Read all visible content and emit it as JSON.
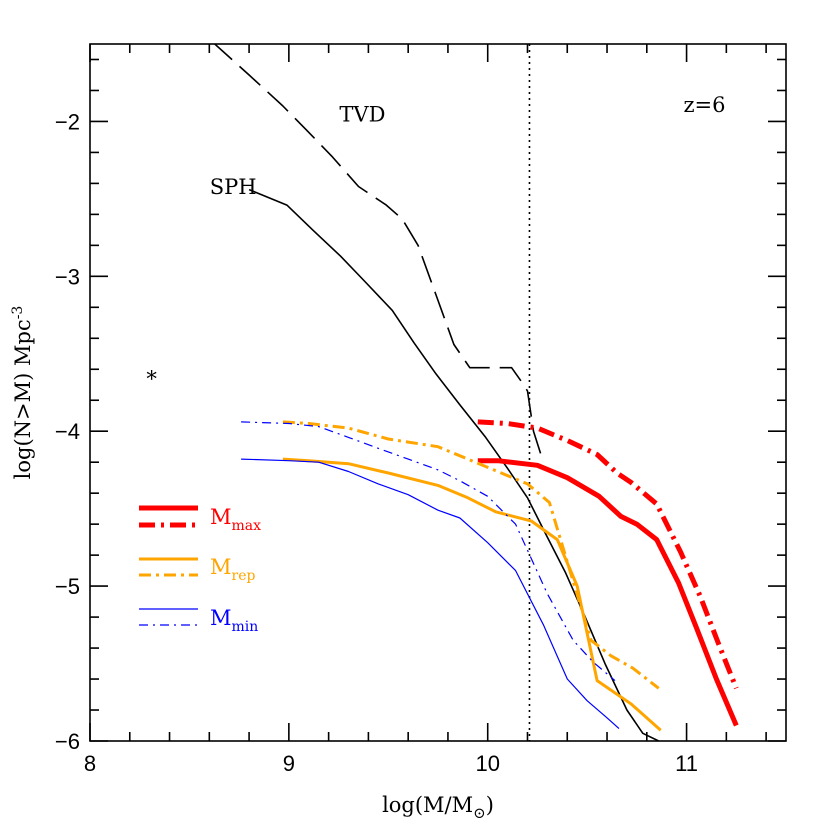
{
  "chart_data": {
    "type": "line",
    "xlabel": "log(M/M",
    "xlabel_sub": "⊙",
    "xlabel_end": ")",
    "ylabel": "log(N>M)  Mpc",
    "ylabel_sup": "-3",
    "xlim": [
      8,
      11.5
    ],
    "ylim": [
      -6,
      -1.5
    ],
    "x_ticks": [
      8,
      9,
      10,
      11
    ],
    "x_tick_labels": [
      "8",
      "9",
      "10",
      "11"
    ],
    "y_ticks": [
      -6,
      -5,
      -4,
      -3,
      -2
    ],
    "y_tick_labels": [
      "−6",
      "−5",
      "−4",
      "−3",
      "−2"
    ],
    "grid": false,
    "legend_position": "lower-left",
    "vline_x": 10.21,
    "colors": {
      "max": "#ff0000",
      "rep": "#ffa500",
      "min": "#0000ff",
      "black": "#000000"
    },
    "annotations": {
      "tvd": "TVD",
      "sph": "SPH",
      "redshift": "z=6",
      "marker": "*"
    },
    "marker_point": {
      "x": 8.31,
      "y": -3.63
    },
    "legend": [
      {
        "base": "M",
        "sub": "max",
        "color": "#ff0000"
      },
      {
        "base": "M",
        "sub": "rep",
        "color": "#ffa500"
      },
      {
        "base": "M",
        "sub": "min",
        "color": "#0000ff"
      }
    ],
    "series": [
      {
        "id": "tvd",
        "color": "#000000",
        "width": 1.6,
        "dash": "28,10",
        "x": [
          8.61,
          8.8,
          8.97,
          9.1,
          9.22,
          9.35,
          9.49,
          9.57,
          9.65,
          9.74,
          9.83,
          9.91,
          9.97,
          10.03,
          10.12,
          10.17,
          10.2,
          10.23,
          10.27
        ],
        "y": [
          -1.48,
          -1.7,
          -1.9,
          -2.07,
          -2.23,
          -2.42,
          -2.54,
          -2.63,
          -2.8,
          -3.12,
          -3.44,
          -3.59,
          -3.59,
          -3.59,
          -3.59,
          -3.68,
          -3.74,
          -4.0,
          -4.16
        ]
      },
      {
        "id": "sph",
        "color": "#000000",
        "width": 1.6,
        "dash": "",
        "x": [
          8.8,
          8.99,
          9.12,
          9.26,
          9.38,
          9.52,
          9.63,
          9.74,
          9.86,
          9.99,
          10.1,
          10.2,
          10.29,
          10.39,
          10.49,
          10.59,
          10.7,
          10.78,
          10.86
        ],
        "y": [
          -2.44,
          -2.54,
          -2.7,
          -2.87,
          -3.03,
          -3.22,
          -3.43,
          -3.63,
          -3.83,
          -4.04,
          -4.24,
          -4.43,
          -4.66,
          -4.91,
          -5.2,
          -5.5,
          -5.8,
          -5.95,
          -6.0
        ]
      },
      {
        "id": "max-solid",
        "color": "#ff0000",
        "width": 5,
        "dash": "",
        "x": [
          9.95,
          10.05,
          10.25,
          10.4,
          10.56,
          10.67,
          10.75,
          10.85,
          10.96,
          11.05,
          11.15,
          11.25
        ],
        "y": [
          -4.19,
          -4.19,
          -4.22,
          -4.3,
          -4.42,
          -4.55,
          -4.6,
          -4.7,
          -4.98,
          -5.27,
          -5.6,
          -5.9
        ]
      },
      {
        "id": "max-dash",
        "color": "#ff0000",
        "width": 5,
        "dash": "16,6,3,6",
        "x": [
          9.95,
          10.1,
          10.25,
          10.4,
          10.55,
          10.65,
          10.72,
          10.85,
          10.97,
          11.07,
          11.16,
          11.25
        ],
        "y": [
          -3.94,
          -3.95,
          -3.98,
          -4.06,
          -4.15,
          -4.27,
          -4.33,
          -4.47,
          -4.78,
          -5.07,
          -5.37,
          -5.66
        ]
      },
      {
        "id": "rep-solid",
        "color": "#ffa500",
        "width": 3,
        "dash": "",
        "x": [
          8.97,
          9.1,
          9.3,
          9.5,
          9.75,
          9.9,
          10.04,
          10.22,
          10.35,
          10.45,
          10.55,
          10.72,
          10.87
        ],
        "y": [
          -4.18,
          -4.19,
          -4.21,
          -4.27,
          -4.35,
          -4.43,
          -4.52,
          -4.58,
          -4.7,
          -5.0,
          -5.61,
          -5.76,
          -5.93
        ]
      },
      {
        "id": "rep-dash",
        "color": "#ffa500",
        "width": 3,
        "dash": "12,5,3,5",
        "x": [
          8.97,
          9.1,
          9.3,
          9.5,
          9.75,
          9.9,
          10.05,
          10.2,
          10.31,
          10.43,
          10.52,
          10.62,
          10.73,
          10.86
        ],
        "y": [
          -3.94,
          -3.95,
          -3.98,
          -4.05,
          -4.1,
          -4.18,
          -4.26,
          -4.34,
          -4.46,
          -4.97,
          -5.35,
          -5.45,
          -5.53,
          -5.66
        ]
      },
      {
        "id": "min-solid",
        "color": "#0000ff",
        "width": 1.2,
        "dash": "",
        "x": [
          8.76,
          9.0,
          9.15,
          9.3,
          9.45,
          9.6,
          9.75,
          9.86,
          10.0,
          10.14,
          10.28,
          10.4,
          10.5,
          10.6,
          10.66
        ],
        "y": [
          -4.18,
          -4.19,
          -4.2,
          -4.26,
          -4.34,
          -4.41,
          -4.51,
          -4.56,
          -4.72,
          -4.9,
          -5.25,
          -5.6,
          -5.74,
          -5.85,
          -5.92
        ]
      },
      {
        "id": "min-dash",
        "color": "#0000ff",
        "width": 1.2,
        "dash": "9,5,2,5",
        "x": [
          8.76,
          9.0,
          9.15,
          9.3,
          9.45,
          9.6,
          9.75,
          9.86,
          10.0,
          10.14,
          10.3,
          10.43,
          10.53,
          10.64
        ],
        "y": [
          -3.94,
          -3.95,
          -3.97,
          -4.04,
          -4.11,
          -4.18,
          -4.25,
          -4.32,
          -4.42,
          -4.6,
          -5.05,
          -5.35,
          -5.49,
          -5.61
        ]
      }
    ]
  }
}
